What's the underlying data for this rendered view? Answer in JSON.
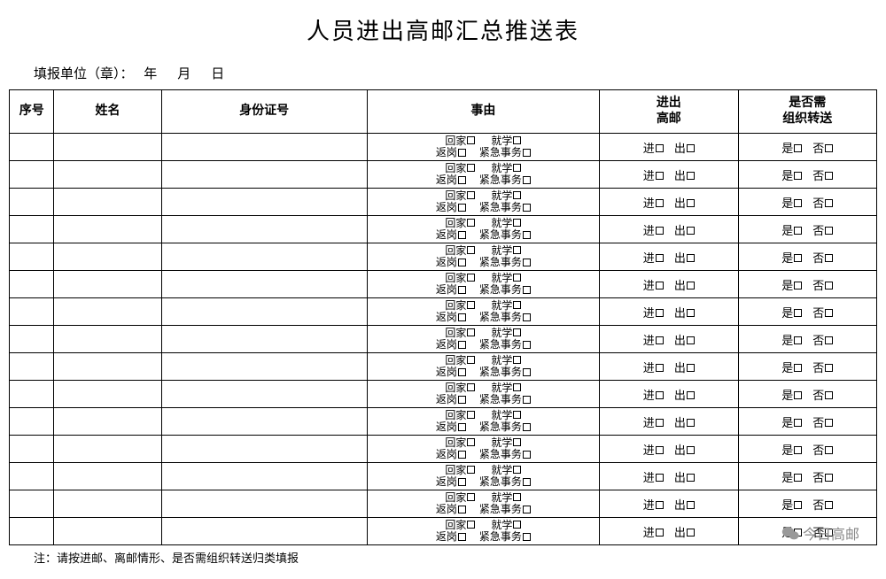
{
  "title": "人员进出高邮汇总推送表",
  "meta": {
    "unit_label": "填报单位（章）：",
    "year": "年",
    "month": "月",
    "day": "日"
  },
  "columns": {
    "seq": "序号",
    "name": "姓名",
    "id": "身份证号",
    "reason": "事由",
    "inout": "进出\n高邮",
    "transfer": "是否需\n组织转送"
  },
  "reason_options": {
    "home": "回家",
    "school": "就学",
    "work": "返岗",
    "urgent": "紧急事务"
  },
  "inout_options": {
    "in": "进",
    "out": "出"
  },
  "transfer_options": {
    "yes": "是",
    "no": "否"
  },
  "row_count": 15,
  "footnote": "注：请按进邮、离邮情形、是否需组织转送归类填报",
  "watermark": "今日高邮"
}
